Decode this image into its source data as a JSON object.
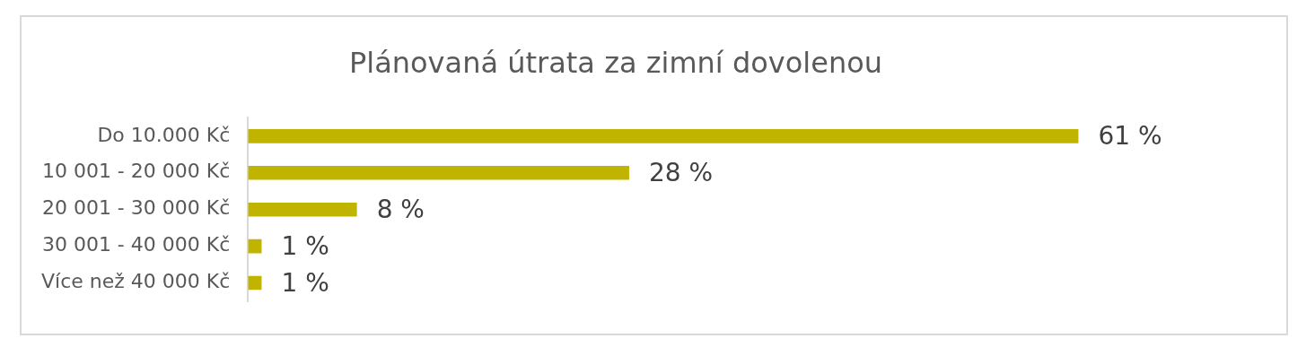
{
  "chart_data": {
    "type": "bar",
    "orientation": "horizontal",
    "title": "Plánovaná útrata za zimní dovolenou",
    "categories": [
      "Do 10.000 Kč",
      "10 001 - 20 000 Kč",
      "20 001 - 30 000 Kč",
      "30 001 - 40 000 Kč",
      "Více než 40 000 Kč"
    ],
    "values": [
      61,
      28,
      8,
      1,
      1
    ],
    "value_labels": [
      "61 %",
      "28 %",
      "8 %",
      "1 %",
      "1 %"
    ],
    "color": "#c0b400"
  }
}
